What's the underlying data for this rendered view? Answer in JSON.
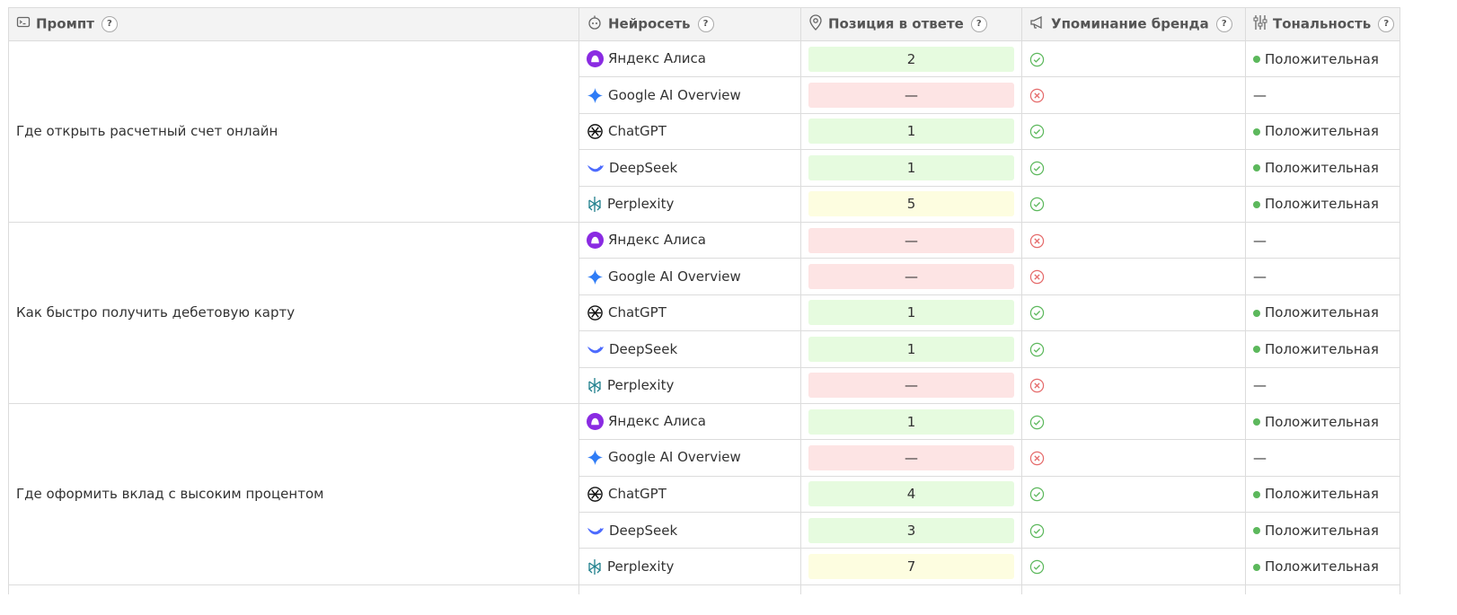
{
  "header": {
    "columns": [
      "Промпт",
      "Нейросеть",
      "Позиция в ответе",
      "Упоминание бренда",
      "Тональность"
    ],
    "help": "?"
  },
  "groups": [
    {
      "prompt": "Где открыть расчетный счет онлайн",
      "rows": [
        {
          "model": "Яндекс Алиса",
          "position": 2,
          "position_color": "#e6fbdf",
          "mention": true,
          "tone": "Положительная",
          "tone_color": "#5cb85c"
        },
        {
          "model": "Google AI Overview",
          "position": "—",
          "position_color": "#fde4e4",
          "mention": false,
          "tone": "—"
        },
        {
          "model": "ChatGPT",
          "position": 1,
          "position_color": "#e6fbdf",
          "mention": true,
          "tone": "Положительная",
          "tone_color": "#5cb85c"
        },
        {
          "model": "DeepSeek",
          "position": 1,
          "position_color": "#e6fbdf",
          "mention": true,
          "tone": "Положительная",
          "tone_color": "#5cb85c"
        },
        {
          "model": "Perplexity",
          "position": 5,
          "position_color": "#fdfde0",
          "mention": true,
          "tone": "Положительная",
          "tone_color": "#5cb85c"
        }
      ]
    },
    {
      "prompt": "Как быстро получить дебетовую карту",
      "rows": [
        {
          "model": "Яндекс Алиса",
          "position": "—",
          "position_color": "#fde4e4",
          "mention": false,
          "tone": "—"
        },
        {
          "model": "Google AI Overview",
          "position": "—",
          "position_color": "#fde4e4",
          "mention": false,
          "tone": "—"
        },
        {
          "model": "ChatGPT",
          "position": 1,
          "position_color": "#e6fbdf",
          "mention": true,
          "tone": "Положительная",
          "tone_color": "#5cb85c"
        },
        {
          "model": "DeepSeek",
          "position": 1,
          "position_color": "#e6fbdf",
          "mention": true,
          "tone": "Положительная",
          "tone_color": "#5cb85c"
        },
        {
          "model": "Perplexity",
          "position": "—",
          "position_color": "#fde4e4",
          "mention": false,
          "tone": "—"
        }
      ]
    },
    {
      "prompt": "Где оформить вклад с высоким процентом",
      "rows": [
        {
          "model": "Яндекс Алиса",
          "position": 1,
          "position_color": "#e6fbdf",
          "mention": true,
          "tone": "Положительная",
          "tone_color": "#5cb85c"
        },
        {
          "model": "Google AI Overview",
          "position": "—",
          "position_color": "#fde4e4",
          "mention": false,
          "tone": "—"
        },
        {
          "model": "ChatGPT",
          "position": 4,
          "position_color": "#e6fbdf",
          "mention": true,
          "tone": "Положительная",
          "tone_color": "#5cb85c"
        },
        {
          "model": "DeepSeek",
          "position": 3,
          "position_color": "#e6fbdf",
          "mention": true,
          "tone": "Положительная",
          "tone_color": "#5cb85c"
        },
        {
          "model": "Perplexity",
          "position": 7,
          "position_color": "#fdfde0",
          "mention": true,
          "tone": "Положительная",
          "tone_color": "#5cb85c"
        }
      ]
    }
  ]
}
